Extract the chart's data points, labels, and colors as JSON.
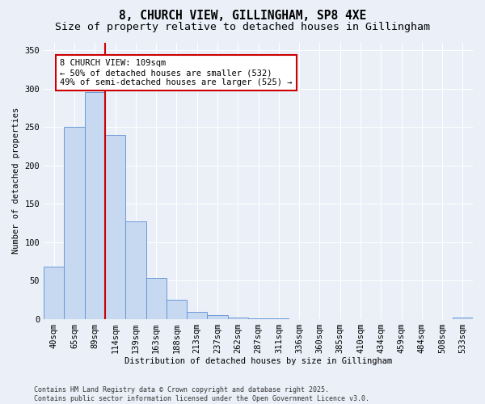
{
  "title_line1": "8, CHURCH VIEW, GILLINGHAM, SP8 4XE",
  "title_line2": "Size of property relative to detached houses in Gillingham",
  "xlabel": "Distribution of detached houses by size in Gillingham",
  "ylabel": "Number of detached properties",
  "categories": [
    "40sqm",
    "65sqm",
    "89sqm",
    "114sqm",
    "139sqm",
    "163sqm",
    "188sqm",
    "213sqm",
    "237sqm",
    "262sqm",
    "287sqm",
    "311sqm",
    "336sqm",
    "360sqm",
    "385sqm",
    "410sqm",
    "434sqm",
    "459sqm",
    "484sqm",
    "508sqm",
    "533sqm"
  ],
  "values": [
    68,
    250,
    295,
    240,
    127,
    53,
    25,
    9,
    5,
    2,
    1,
    1,
    0,
    0,
    0,
    0,
    0,
    0,
    0,
    0,
    2
  ],
  "bar_color": "#c6d9f1",
  "bar_edge_color": "#5b8fd4",
  "vline_color": "#cc0000",
  "annotation_box_color": "#cc0000",
  "annotation_line1": "8 CHURCH VIEW: 109sqm",
  "annotation_line2": "← 50% of detached houses are smaller (532)",
  "annotation_line3": "49% of semi-detached houses are larger (525) →",
  "ylim": [
    0,
    360
  ],
  "yticks": [
    0,
    50,
    100,
    150,
    200,
    250,
    300,
    350
  ],
  "footer_line1": "Contains HM Land Registry data © Crown copyright and database right 2025.",
  "footer_line2": "Contains public sector information licensed under the Open Government Licence v3.0.",
  "bg_color": "#eaeff8",
  "plot_bg_color": "#eaeff8",
  "grid_color": "#ffffff",
  "title_fontsize": 10.5,
  "subtitle_fontsize": 9.5,
  "axis_fontsize": 7.5,
  "tick_fontsize": 7.5
}
